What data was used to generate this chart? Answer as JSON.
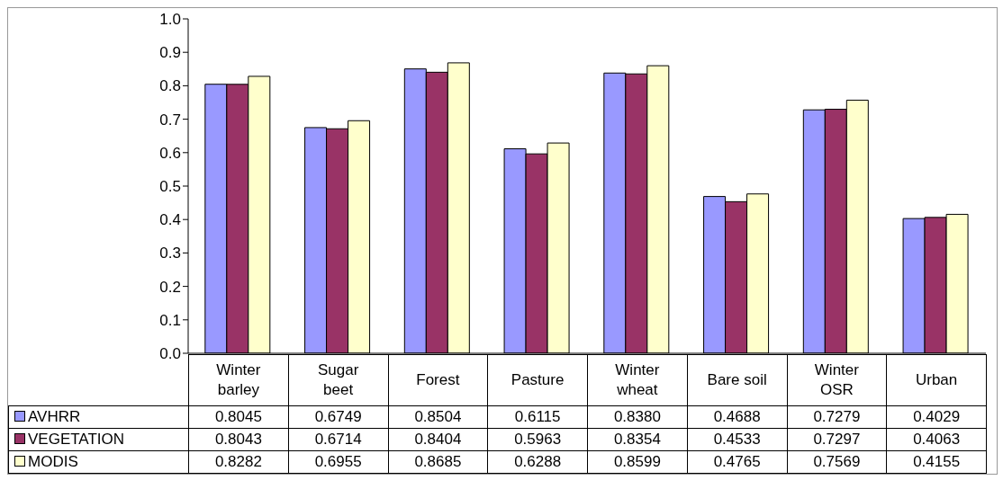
{
  "chart_data": {
    "type": "bar",
    "categories": [
      "Winter barley",
      "Sugar beet",
      "Forest",
      "Pasture",
      "Winter wheat",
      "Bare soil",
      "Winter OSR",
      "Urban"
    ],
    "series": [
      {
        "name": "AVHRR",
        "color": "#9999ff",
        "values": [
          0.8045,
          0.6749,
          0.8504,
          0.6115,
          0.838,
          0.4688,
          0.7279,
          0.4029
        ],
        "value_labels": [
          "0.8045",
          "0.6749",
          "0.8504",
          "0.6115",
          "0.8380",
          "0.4688",
          "0.7279",
          "0.4029"
        ]
      },
      {
        "name": "VEGETATION",
        "color": "#993366",
        "values": [
          0.8043,
          0.6714,
          0.8404,
          0.5963,
          0.8354,
          0.4533,
          0.7297,
          0.4063
        ],
        "value_labels": [
          "0.8043",
          "0.6714",
          "0.8404",
          "0.5963",
          "0.8354",
          "0.4533",
          "0.7297",
          "0.4063"
        ]
      },
      {
        "name": "MODIS",
        "color": "#ffffcc",
        "values": [
          0.8282,
          0.6955,
          0.8685,
          0.6288,
          0.8599,
          0.4765,
          0.7569,
          0.4155
        ],
        "value_labels": [
          "0.8282",
          "0.6955",
          "0.8685",
          "0.6288",
          "0.8599",
          "0.4765",
          "0.7569",
          "0.4155"
        ]
      }
    ],
    "ylim": [
      0,
      1
    ],
    "yticks": [
      {
        "value": 0,
        "label": "0.0"
      },
      0.1,
      0.2,
      0.3,
      0.4,
      0.5,
      0.6,
      0.7,
      0.8,
      0.9,
      {
        "value": 1,
        "label": "1.0"
      }
    ],
    "grid": false,
    "legend": "bottom left"
  }
}
